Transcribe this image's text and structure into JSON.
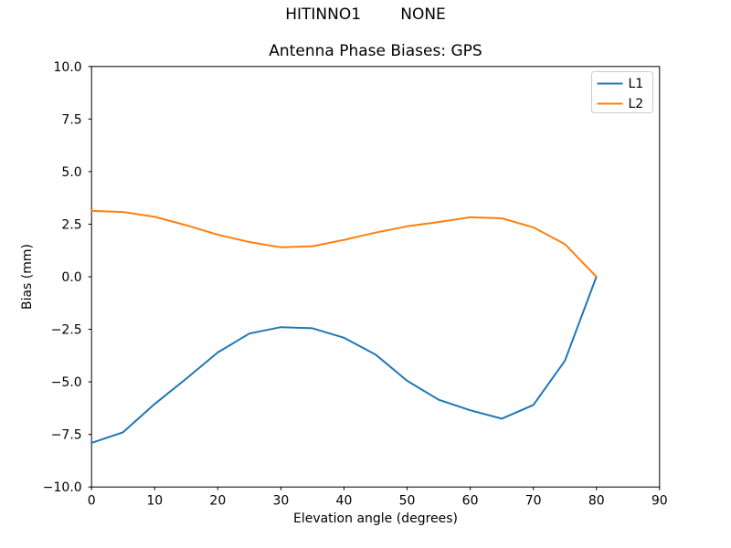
{
  "chart_data": {
    "type": "line",
    "suptitle": "HITINNO1        NONE",
    "title": "Antenna Phase Biases: GPS",
    "xlabel": "Elevation angle (degrees)",
    "ylabel": "Bias (mm)",
    "xlim": [
      0,
      90
    ],
    "ylim": [
      -10,
      10
    ],
    "xticks": [
      0,
      10,
      20,
      30,
      40,
      50,
      60,
      70,
      80,
      90
    ],
    "yticks": [
      -10,
      -7.5,
      -5,
      -2.5,
      0,
      2.5,
      5,
      7.5,
      10
    ],
    "grid": false,
    "legend": {
      "position": "upper right",
      "border_color": "#cccccc",
      "background": "#ffffff"
    },
    "x": [
      0,
      5,
      10,
      15,
      20,
      25,
      30,
      35,
      40,
      45,
      50,
      55,
      60,
      65,
      70,
      75,
      80
    ],
    "series": [
      {
        "name": "L1",
        "color": "#1f77b4",
        "values": [
          -7.9,
          -7.4,
          -6.05,
          -4.85,
          -3.6,
          -2.7,
          -2.4,
          -2.45,
          -2.9,
          -3.7,
          -4.95,
          -5.85,
          -6.35,
          -6.75,
          -6.1,
          -4.0,
          0.0
        ]
      },
      {
        "name": "L2",
        "color": "#ff7f0e",
        "values": [
          3.13,
          3.08,
          2.85,
          2.45,
          2.0,
          1.65,
          1.4,
          1.45,
          1.75,
          2.1,
          2.4,
          2.6,
          2.83,
          2.78,
          2.35,
          1.55,
          0.0
        ]
      }
    ]
  }
}
